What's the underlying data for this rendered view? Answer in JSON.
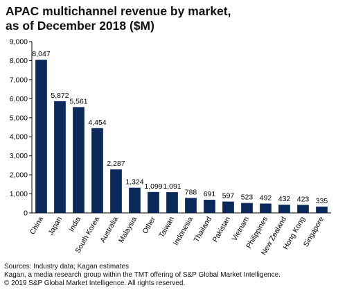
{
  "title_lines": [
    "APAC multichannel revenue by market,",
    "as of December 2018 ($M)"
  ],
  "chart_data": {
    "type": "bar",
    "title": "APAC multichannel revenue by market, as of December 2018 ($M)",
    "categories": [
      "China",
      "Japan",
      "India",
      "South Korea",
      "Australia",
      "Malaysia",
      "Other",
      "Taiwan",
      "Indonesia",
      "Thailand",
      "Pakistan",
      "Vietnam",
      "Philippines",
      "New Zealand",
      "Hong Kong",
      "Singapore"
    ],
    "values": [
      8047,
      5872,
      5561,
      4454,
      2287,
      1324,
      1099,
      1091,
      788,
      691,
      597,
      523,
      492,
      432,
      423,
      335
    ],
    "value_labels": [
      "8,047",
      "5,872",
      "5,561",
      "4,454",
      "2,287",
      "1,324",
      "1,099",
      "1,091",
      "788",
      "691",
      "597",
      "523",
      "492",
      "432",
      "423",
      "335"
    ],
    "yticks": [
      "0",
      "1,000",
      "2,000",
      "3,000",
      "4,000",
      "5,000",
      "6,000",
      "7,000",
      "8,000",
      "9,000"
    ],
    "ylim": [
      0,
      9000
    ],
    "xlabel": "",
    "ylabel": "",
    "bar_color": "#0b2a5b",
    "grid": false,
    "legend": "none"
  },
  "footer": {
    "sources": "Sources: Industry data; Kagan estimates",
    "kagan": "Kagan, a media research group within the TMT offering of S&P Global Market Intelligence.",
    "copyright": "© 2019 S&P Global Market Intelligence. All rights reserved."
  }
}
